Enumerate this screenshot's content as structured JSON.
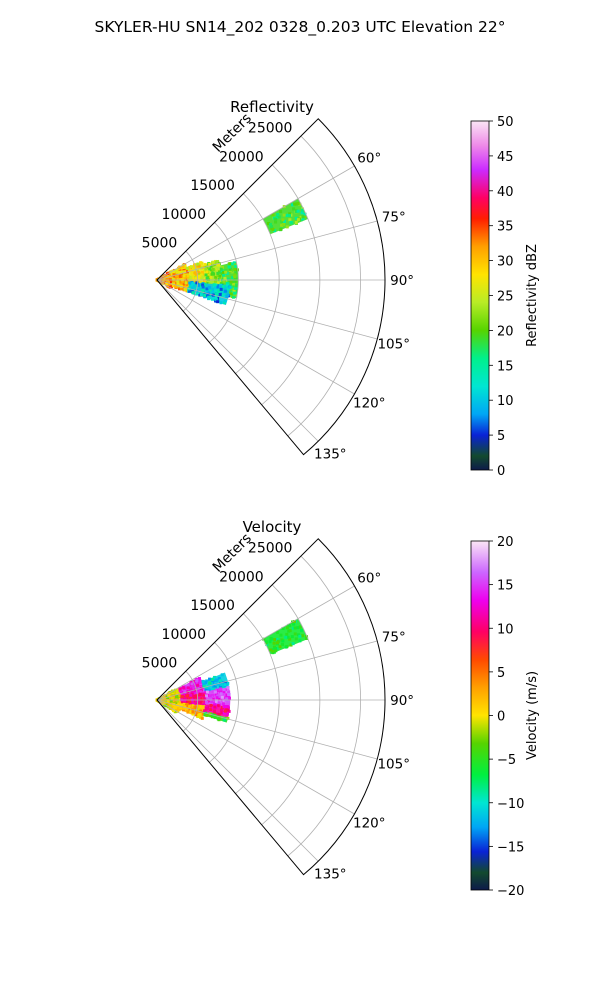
{
  "title": "SKYLER-HU  SN14_202  0328_0.203 UTC Elevation 22°",
  "chart_data": [
    {
      "type": "polar-sector",
      "title": "Reflectivity",
      "radial_label": "Meters",
      "r_range": [
        0,
        28000
      ],
      "theta_range_deg": [
        45,
        140
      ],
      "r_ticks": [
        "5000",
        "10000",
        "15000",
        "20000",
        "25000"
      ],
      "theta_ticks": [
        "60°",
        "75°",
        "90°",
        "105°",
        "120°",
        "135°"
      ],
      "colorbar": {
        "label": "Reflectivity dBZ",
        "range": [
          0,
          50
        ],
        "ticks": [
          "0",
          "5",
          "10",
          "15",
          "20",
          "25",
          "30",
          "35",
          "40",
          "45",
          "50"
        ]
      },
      "echoes": [
        {
          "r": [
            0,
            2000
          ],
          "az": [
            58,
            121
          ],
          "value": 32
        },
        {
          "r": [
            2000,
            4000
          ],
          "az": [
            60,
            112
          ],
          "value": 30
        },
        {
          "r": [
            4000,
            6000
          ],
          "az": [
            68,
            110
          ],
          "value": 27
        },
        {
          "r": [
            6000,
            8000
          ],
          "az": [
            72,
            105
          ],
          "value": 23
        },
        {
          "r": [
            8000,
            10000
          ],
          "az": [
            77,
            103
          ],
          "value": 19
        },
        {
          "r": [
            4000,
            9000
          ],
          "az": [
            94,
            110
          ],
          "value": 10
        },
        {
          "r": [
            15000,
            20000
          ],
          "az": [
            60,
            68
          ],
          "value": 19
        }
      ]
    },
    {
      "type": "polar-sector",
      "title": "Velocity",
      "radial_label": "Meters",
      "r_range": [
        0,
        28000
      ],
      "theta_range_deg": [
        45,
        140
      ],
      "r_ticks": [
        "5000",
        "10000",
        "15000",
        "20000",
        "25000"
      ],
      "theta_ticks": [
        "60°",
        "75°",
        "90°",
        "105°",
        "120°",
        "135°"
      ],
      "colorbar": {
        "label": "Velocity (m/s)",
        "range": [
          -20,
          20
        ],
        "ticks": [
          "−20",
          "−15",
          "−10",
          "−5",
          "0",
          "5",
          "10",
          "15",
          "20"
        ]
      },
      "echoes": [
        {
          "r": [
            0,
            3000
          ],
          "az": [
            60,
            123
          ],
          "value": 0
        },
        {
          "r": [
            3000,
            6000
          ],
          "az": [
            62,
            82
          ],
          "value": 13
        },
        {
          "r": [
            3000,
            6000
          ],
          "az": [
            82,
            98
          ],
          "value": 10
        },
        {
          "r": [
            3000,
            6000
          ],
          "az": [
            98,
            113
          ],
          "value": 2
        },
        {
          "r": [
            6000,
            9000
          ],
          "az": [
            68,
            80
          ],
          "value": -11
        },
        {
          "r": [
            6000,
            9000
          ],
          "az": [
            80,
            95
          ],
          "value": 15
        },
        {
          "r": [
            6000,
            9000
          ],
          "az": [
            95,
            104
          ],
          "value": 11
        },
        {
          "r": [
            6000,
            9000
          ],
          "az": [
            104,
            108
          ],
          "value": -5
        },
        {
          "r": [
            15000,
            20000
          ],
          "az": [
            60,
            68
          ],
          "value": -6
        }
      ]
    }
  ]
}
